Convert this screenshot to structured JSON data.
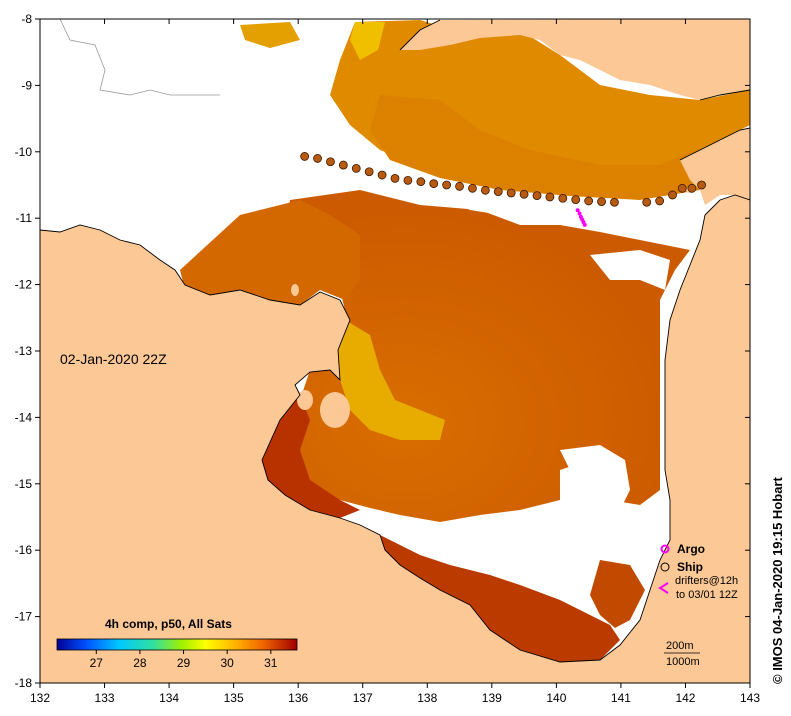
{
  "map": {
    "date_label": "02-Jan-2020 22Z",
    "credit": "© IMOS 04-Jan-2020 19:15 Hobart",
    "lon_ticks": [
      "132",
      "133",
      "134",
      "135",
      "136",
      "137",
      "138",
      "139",
      "140",
      "141",
      "142",
      "143"
    ],
    "lat_ticks": [
      "-8",
      "-9",
      "-10",
      "-11",
      "-12",
      "-13",
      "-14",
      "-15",
      "-16",
      "-17",
      "-18"
    ],
    "lon_range": [
      132,
      143
    ],
    "lat_range": [
      -18,
      -8
    ],
    "colors": {
      "land": "#fcc896",
      "nodata": "#ffffff",
      "ship_track": "#b85a12",
      "argo": "#ff00ff"
    }
  },
  "colorbar": {
    "title": "4h comp, p50, All Sats",
    "ticks": [
      "27",
      "28",
      "29",
      "30",
      "31"
    ],
    "range": [
      26.1,
      31.6
    ]
  },
  "legend": {
    "argo": "Argo",
    "ship": "Ship",
    "drifters_line1": "drifters@12h",
    "drifters_line2": "to 03/01 12Z"
  },
  "scale": {
    "depth1": "200m",
    "depth2": "1000m"
  },
  "ship_track": [
    [
      136.1,
      -10.07
    ],
    [
      136.3,
      -10.1
    ],
    [
      136.5,
      -10.15
    ],
    [
      136.7,
      -10.2
    ],
    [
      136.9,
      -10.25
    ],
    [
      137.1,
      -10.3
    ],
    [
      137.3,
      -10.35
    ],
    [
      137.5,
      -10.4
    ],
    [
      137.7,
      -10.43
    ],
    [
      137.9,
      -10.45
    ],
    [
      138.1,
      -10.48
    ],
    [
      138.3,
      -10.5
    ],
    [
      138.5,
      -10.52
    ],
    [
      138.7,
      -10.55
    ],
    [
      138.9,
      -10.58
    ],
    [
      139.1,
      -10.6
    ],
    [
      139.3,
      -10.62
    ],
    [
      139.5,
      -10.64
    ],
    [
      139.7,
      -10.66
    ],
    [
      139.9,
      -10.68
    ],
    [
      140.1,
      -10.7
    ],
    [
      140.3,
      -10.72
    ],
    [
      140.5,
      -10.74
    ],
    [
      140.7,
      -10.75
    ],
    [
      140.9,
      -10.76
    ],
    [
      141.4,
      -10.76
    ],
    [
      141.6,
      -10.74
    ],
    [
      141.8,
      -10.65
    ],
    [
      141.95,
      -10.55
    ],
    [
      142.1,
      -10.55
    ],
    [
      142.25,
      -10.5
    ]
  ],
  "argo_track": [
    [
      140.33,
      -10.88
    ],
    [
      140.36,
      -10.93
    ],
    [
      140.38,
      -10.98
    ],
    [
      140.4,
      -11.02
    ],
    [
      140.42,
      -11.06
    ],
    [
      140.44,
      -11.1
    ]
  ]
}
